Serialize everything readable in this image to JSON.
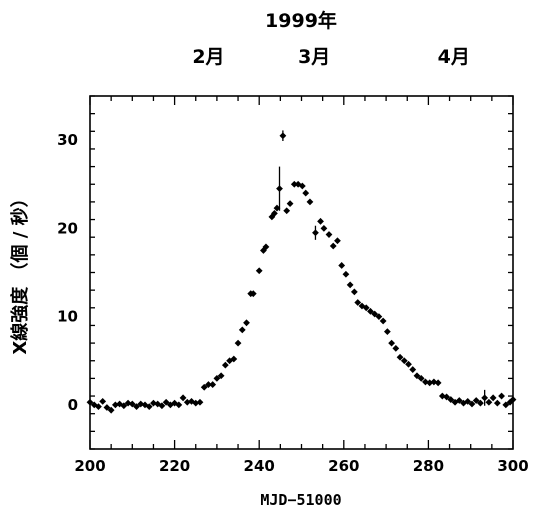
{
  "chart_data": {
    "type": "scatter",
    "top_title": "1999年",
    "month_labels": [
      {
        "label": "2月",
        "x": 228
      },
      {
        "label": "3月",
        "x": 253
      },
      {
        "label": "4月",
        "x": 286
      }
    ],
    "xlabel": "MJD−51000",
    "ylabel": "X線強度 （個 / 秒）",
    "xlim": [
      200,
      300
    ],
    "ylim": [
      -5,
      35
    ],
    "xticks": [
      200,
      220,
      240,
      260,
      280,
      300
    ],
    "yticks": [
      0,
      10,
      20,
      30
    ],
    "grid": false,
    "series": [
      {
        "points": [
          {
            "x": 200,
            "y": 0.3
          },
          {
            "x": 201,
            "y": 0.0
          },
          {
            "x": 202,
            "y": -0.2
          },
          {
            "x": 203,
            "y": 0.4
          },
          {
            "x": 204,
            "y": -0.3
          },
          {
            "x": 205,
            "y": -0.6
          },
          {
            "x": 206,
            "y": 0.0
          },
          {
            "x": 207,
            "y": 0.1
          },
          {
            "x": 208,
            "y": -0.1
          },
          {
            "x": 209,
            "y": 0.2
          },
          {
            "x": 210,
            "y": 0.1
          },
          {
            "x": 211,
            "y": -0.2
          },
          {
            "x": 212,
            "y": 0.1
          },
          {
            "x": 213,
            "y": 0.0
          },
          {
            "x": 214,
            "y": -0.2
          },
          {
            "x": 215,
            "y": 0.2
          },
          {
            "x": 216,
            "y": 0.1
          },
          {
            "x": 217,
            "y": -0.1
          },
          {
            "x": 218,
            "y": 0.3
          },
          {
            "x": 219,
            "y": 0.0
          },
          {
            "x": 220,
            "y": 0.2
          },
          {
            "x": 221,
            "y": 0.0
          },
          {
            "x": 222,
            "y": 0.8
          },
          {
            "x": 223,
            "y": 0.3
          },
          {
            "x": 224,
            "y": 0.4
          },
          {
            "x": 225,
            "y": 0.2
          },
          {
            "x": 226,
            "y": 0.3
          },
          {
            "x": 227,
            "y": 2.0
          },
          {
            "x": 228,
            "y": 2.3
          },
          {
            "x": 229,
            "y": 2.3
          },
          {
            "x": 230,
            "y": 3.0
          },
          {
            "x": 231,
            "y": 3.3
          },
          {
            "x": 232,
            "y": 4.5
          },
          {
            "x": 233,
            "y": 5.0
          },
          {
            "x": 234,
            "y": 5.2
          },
          {
            "x": 235,
            "y": 7.0
          },
          {
            "x": 236,
            "y": 8.5
          },
          {
            "x": 237,
            "y": 9.3
          },
          {
            "x": 238,
            "y": 12.6
          },
          {
            "x": 238.6,
            "y": 12.6
          },
          {
            "x": 240,
            "y": 15.2
          },
          {
            "x": 241,
            "y": 17.5
          },
          {
            "x": 241.6,
            "y": 17.9
          },
          {
            "x": 243,
            "y": 21.3
          },
          {
            "x": 243.6,
            "y": 21.7
          },
          {
            "x": 244.2,
            "y": 22.3
          },
          {
            "x": 244.8,
            "y": 24.5,
            "err": 2.5
          },
          {
            "x": 245.6,
            "y": 30.5,
            "err": 0.6
          },
          {
            "x": 246.5,
            "y": 22.0
          },
          {
            "x": 247.3,
            "y": 22.8
          },
          {
            "x": 248.3,
            "y": 25.0
          },
          {
            "x": 249.2,
            "y": 25.0
          },
          {
            "x": 250.2,
            "y": 24.8
          },
          {
            "x": 251,
            "y": 24.0
          },
          {
            "x": 252,
            "y": 23.0
          },
          {
            "x": 253.3,
            "y": 19.5,
            "err": 0.8
          },
          {
            "x": 254.5,
            "y": 20.8
          },
          {
            "x": 255.3,
            "y": 20.0
          },
          {
            "x": 256.5,
            "y": 19.3
          },
          {
            "x": 257.5,
            "y": 18.0
          },
          {
            "x": 258.5,
            "y": 18.6
          },
          {
            "x": 259.5,
            "y": 15.8
          },
          {
            "x": 260.5,
            "y": 14.8
          },
          {
            "x": 261.5,
            "y": 13.6
          },
          {
            "x": 262.5,
            "y": 12.8
          },
          {
            "x": 263.3,
            "y": 11.6
          },
          {
            "x": 264.3,
            "y": 11.2
          },
          {
            "x": 265.3,
            "y": 11.0
          },
          {
            "x": 266.3,
            "y": 10.6
          },
          {
            "x": 267.3,
            "y": 10.3
          },
          {
            "x": 268.3,
            "y": 10.0
          },
          {
            "x": 269.3,
            "y": 9.5
          },
          {
            "x": 270.3,
            "y": 8.3
          },
          {
            "x": 271.3,
            "y": 7.0
          },
          {
            "x": 272.3,
            "y": 6.4
          },
          {
            "x": 273.3,
            "y": 5.4
          },
          {
            "x": 274.3,
            "y": 5.0
          },
          {
            "x": 275.3,
            "y": 4.6
          },
          {
            "x": 276.3,
            "y": 4.0
          },
          {
            "x": 277.3,
            "y": 3.3
          },
          {
            "x": 278.3,
            "y": 3.0
          },
          {
            "x": 279.3,
            "y": 2.6
          },
          {
            "x": 280.3,
            "y": 2.5
          },
          {
            "x": 281.3,
            "y": 2.6
          },
          {
            "x": 282.3,
            "y": 2.5
          },
          {
            "x": 283.3,
            "y": 1.0
          },
          {
            "x": 284.3,
            "y": 0.9
          },
          {
            "x": 285.3,
            "y": 0.6
          },
          {
            "x": 286.3,
            "y": 0.3
          },
          {
            "x": 287.3,
            "y": 0.5
          },
          {
            "x": 288.3,
            "y": 0.2
          },
          {
            "x": 289.3,
            "y": 0.4
          },
          {
            "x": 290.3,
            "y": 0.1
          },
          {
            "x": 291.3,
            "y": 0.5
          },
          {
            "x": 292.3,
            "y": 0.2
          },
          {
            "x": 293.3,
            "y": 0.8,
            "err": 0.9
          },
          {
            "x": 294.3,
            "y": 0.3
          },
          {
            "x": 295.3,
            "y": 0.8
          },
          {
            "x": 296.3,
            "y": 0.2
          },
          {
            "x": 297.3,
            "y": 1.0
          },
          {
            "x": 298.3,
            "y": 0.0
          },
          {
            "x": 299.3,
            "y": 0.3
          },
          {
            "x": 300,
            "y": 0.6
          }
        ]
      }
    ]
  }
}
